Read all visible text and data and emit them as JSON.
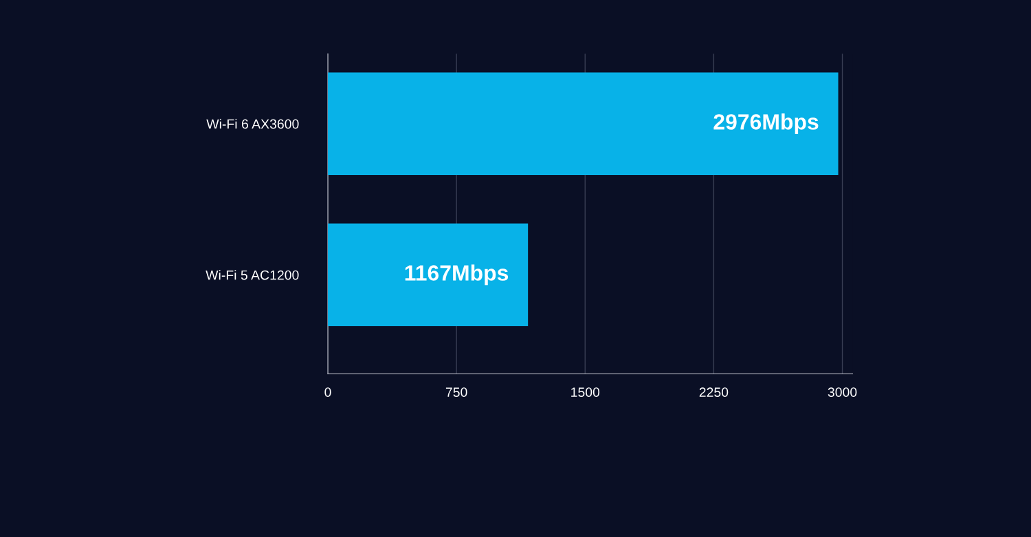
{
  "chart_data": {
    "type": "bar",
    "orientation": "horizontal",
    "categories": [
      "Wi-Fi 6 AX3600",
      "Wi-Fi 5 AC1200"
    ],
    "values": [
      2976,
      1167
    ],
    "colors": [
      "#08b2e8",
      "#08b2e8"
    ],
    "value_labels": [
      "2976Mbps",
      "1167Mbps"
    ],
    "xlim": [
      0,
      3060
    ],
    "xticks": [
      0,
      750,
      1500,
      2250,
      3000
    ],
    "grid": "x"
  }
}
